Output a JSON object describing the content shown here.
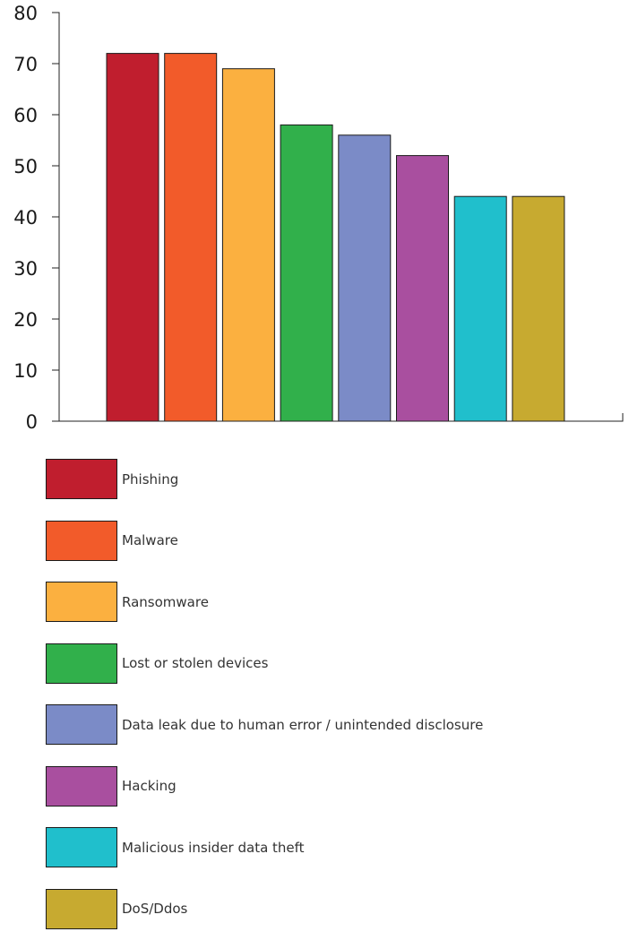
{
  "chart_data": {
    "type": "bar",
    "categories": [
      "Phishing",
      "Malware",
      "Ransomware",
      "Lost or stolen devices",
      "Data leak due to human error / unintended disclosure",
      "Hacking",
      "Malicious insider data theft",
      "DoS/Ddos"
    ],
    "values": [
      72,
      72,
      69,
      58,
      56,
      52,
      44,
      44
    ],
    "colors": [
      "#c01e2e",
      "#f25b2a",
      "#fbb040",
      "#31b04b",
      "#7b8bc7",
      "#a94f9f",
      "#20bfcc",
      "#c7aa30"
    ],
    "ylim": [
      0,
      80
    ],
    "yticks": [
      "0",
      "10",
      "20",
      "30",
      "40",
      "50",
      "60",
      "70",
      "80"
    ],
    "title": "",
    "xlabel": "",
    "ylabel": "",
    "grid": false,
    "legend_position": "bottom"
  }
}
